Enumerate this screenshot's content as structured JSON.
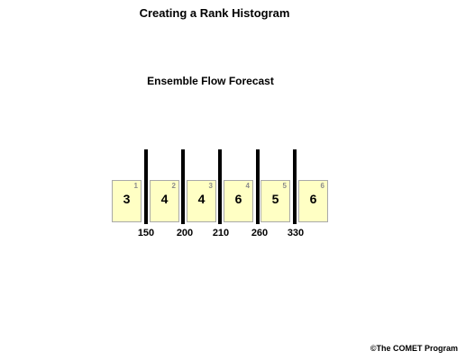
{
  "title": "Creating a Rank Histogram",
  "subtitle": "Ensemble Flow Forecast",
  "bins": [
    {
      "number": "1",
      "count": "3"
    },
    {
      "number": "2",
      "count": "4"
    },
    {
      "number": "3",
      "count": "4"
    },
    {
      "number": "4",
      "count": "6"
    },
    {
      "number": "5",
      "count": "5"
    },
    {
      "number": "6",
      "count": "6"
    }
  ],
  "thresholds": [
    "150",
    "200",
    "210",
    "260",
    "330"
  ],
  "credit": "©The COMET Program",
  "colors": {
    "bin_fill": "#ffffc4",
    "bin_border": "#a9a9a9",
    "bin_number": "#8c8c8c",
    "divider": "#000000"
  }
}
